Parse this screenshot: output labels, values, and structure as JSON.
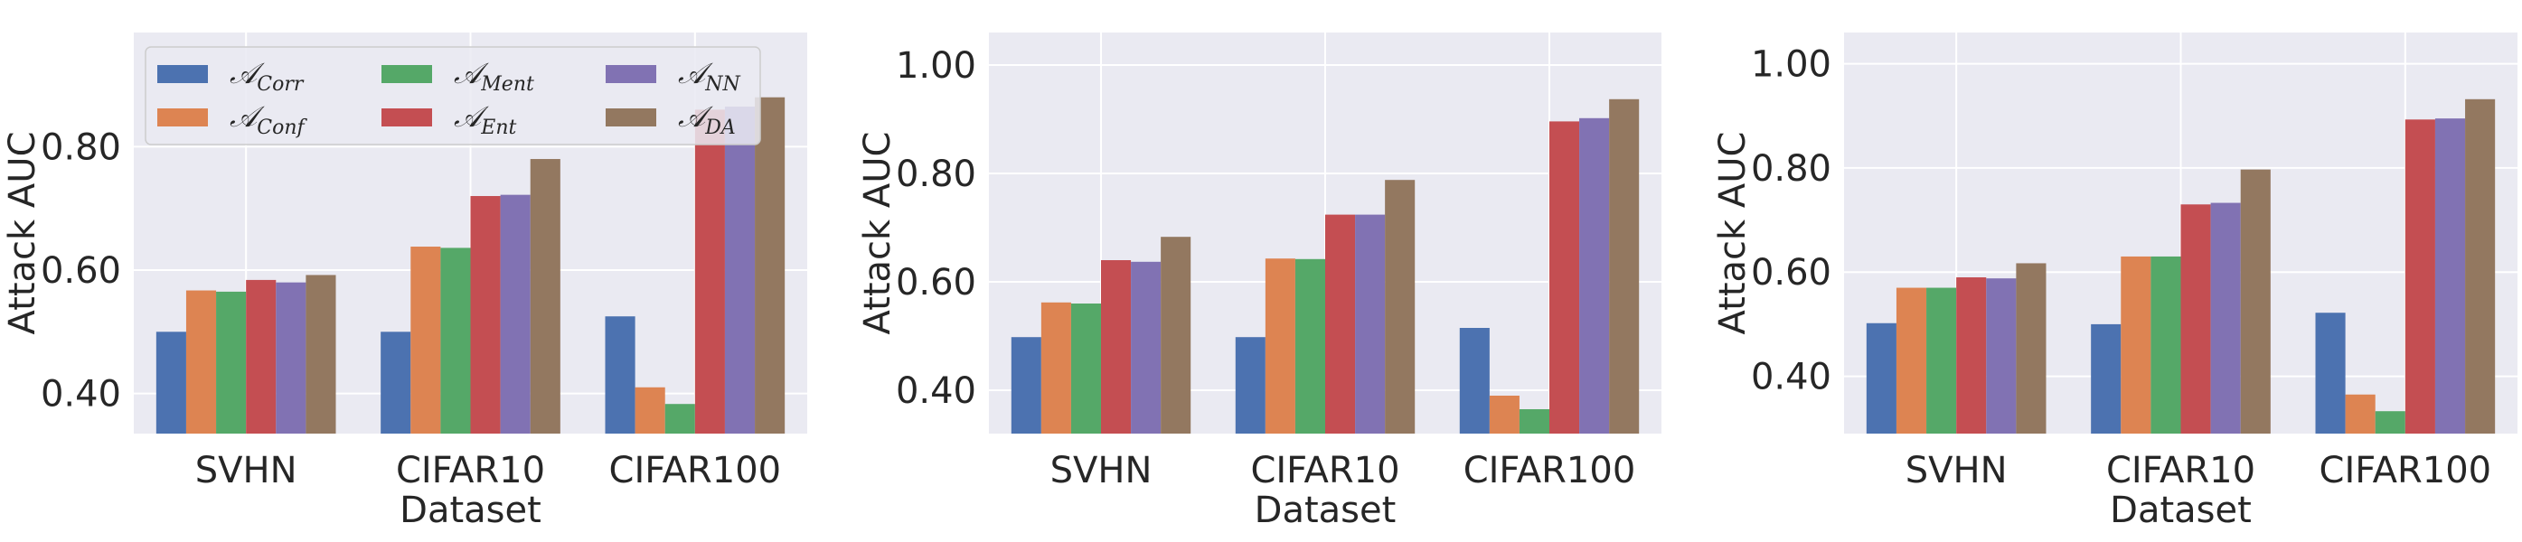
{
  "chart_data": [
    {
      "type": "bar",
      "categories": [
        "SVHN",
        "CIFAR10",
        "CIFAR100"
      ],
      "xlabel": "Dataset",
      "ylabel": "Attack AUC",
      "ylim": [
        0.335,
        0.985
      ],
      "yticks": [
        "0.40",
        "0.60",
        "0.80"
      ],
      "legend": "top-left",
      "series": [
        {
          "name": "Corr",
          "values": [
            0.5,
            0.5,
            0.525
          ]
        },
        {
          "name": "Conf",
          "values": [
            0.567,
            0.638,
            0.41
          ]
        },
        {
          "name": "Ment",
          "values": [
            0.565,
            0.636,
            0.383
          ]
        },
        {
          "name": "Ent",
          "values": [
            0.584,
            0.72,
            0.86
          ]
        },
        {
          "name": "NN",
          "values": [
            0.58,
            0.722,
            0.865
          ]
        },
        {
          "name": "DA",
          "values": [
            0.592,
            0.78,
            0.88
          ]
        }
      ]
    },
    {
      "type": "bar",
      "categories": [
        "SVHN",
        "CIFAR10",
        "CIFAR100"
      ],
      "xlabel": "Dataset",
      "ylabel": "Attack AUC",
      "ylim": [
        0.32,
        1.06
      ],
      "yticks": [
        "0.40",
        "0.60",
        "0.80",
        "1.00"
      ],
      "series": [
        {
          "name": "Corr",
          "values": [
            0.498,
            0.498,
            0.515
          ]
        },
        {
          "name": "Conf",
          "values": [
            0.562,
            0.643,
            0.39
          ]
        },
        {
          "name": "Ment",
          "values": [
            0.56,
            0.642,
            0.365
          ]
        },
        {
          "name": "Ent",
          "values": [
            0.64,
            0.724,
            0.896
          ]
        },
        {
          "name": "NN",
          "values": [
            0.637,
            0.724,
            0.902
          ]
        },
        {
          "name": "DA",
          "values": [
            0.683,
            0.788,
            0.937
          ]
        }
      ]
    },
    {
      "type": "bar",
      "categories": [
        "SVHN",
        "CIFAR10",
        "CIFAR100"
      ],
      "xlabel": "Dataset",
      "ylabel": "Attack AUC",
      "ylim": [
        0.29,
        1.06
      ],
      "yticks": [
        "0.40",
        "0.60",
        "0.80",
        "1.00"
      ],
      "series": [
        {
          "name": "Corr",
          "values": [
            0.502,
            0.5,
            0.522
          ]
        },
        {
          "name": "Conf",
          "values": [
            0.57,
            0.63,
            0.365
          ]
        },
        {
          "name": "Ment",
          "values": [
            0.57,
            0.63,
            0.333
          ]
        },
        {
          "name": "Ent",
          "values": [
            0.59,
            0.73,
            0.893
          ]
        },
        {
          "name": "NN",
          "values": [
            0.588,
            0.733,
            0.895
          ]
        },
        {
          "name": "DA",
          "values": [
            0.617,
            0.797,
            0.932
          ]
        }
      ]
    }
  ],
  "legend": {
    "prefix": "𝒜",
    "entries": [
      "Corr",
      "Conf",
      "Ment",
      "Ent",
      "NN",
      "DA"
    ]
  },
  "colors": [
    "#4c72b0",
    "#dd8452",
    "#55a868",
    "#c44e52",
    "#8172b3",
    "#937860"
  ],
  "style": {
    "plot_bg": "#eaeaf2",
    "grid": "#ffffff",
    "text": "#262626"
  }
}
